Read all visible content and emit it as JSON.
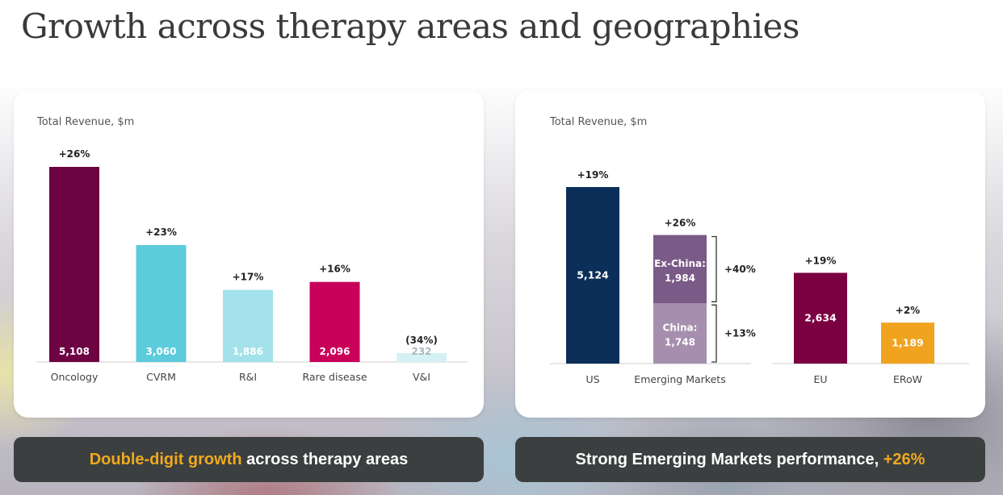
{
  "page": {
    "title": "Growth across therapy areas and geographies"
  },
  "colors": {
    "oncology": "#6d0343",
    "cvrm": "#5ccbdb",
    "ri": "#a3e2ea",
    "rare": "#c8005a",
    "vi": "#d6f1f5",
    "us": "#0b2f58",
    "china": "#a68fae",
    "exchina": "#7a5a86",
    "eu": "#7b0041",
    "erow": "#f0a31e",
    "highlight": "#f0a91e"
  },
  "banners": {
    "left": {
      "highlight": "Double-digit growth",
      "rest": " across therapy areas"
    },
    "right": {
      "text": "Strong Emerging Markets performance, ",
      "highlight": "+26%"
    }
  },
  "chart_data": [
    {
      "type": "bar",
      "title": "Total Revenue, $m",
      "categories": [
        "Oncology",
        "CVRM",
        "R&I",
        "Rare disease",
        "V&I"
      ],
      "values": [
        5108,
        3060,
        1886,
        2096,
        232
      ],
      "value_labels": [
        "5,108",
        "3,060",
        "1,886",
        "2,096",
        "232"
      ],
      "growth_labels": [
        "+26%",
        "+23%",
        "+17%",
        "+16%",
        "(34%)"
      ],
      "colors": [
        "#6d0343",
        "#5ccbdb",
        "#a3e2ea",
        "#c8005a",
        "#d6f1f5"
      ],
      "label_colors": [
        "#ffffff",
        "#ffffff",
        "#ffffff",
        "#ffffff",
        "#a9b8bb"
      ],
      "ylim": [
        0,
        5108
      ],
      "grid": false,
      "legend": "none"
    },
    {
      "type": "bar",
      "title": "Total Revenue, $m",
      "categories": [
        "US",
        "Emerging Markets",
        "EU",
        "ERoW"
      ],
      "values": [
        5124,
        3732,
        2634,
        1189
      ],
      "value_labels": [
        "5,124",
        "",
        "2,634",
        "1,189"
      ],
      "growth_labels": [
        "+19%",
        "+26%",
        "+19%",
        "+2%"
      ],
      "colors": [
        "#0b2f58",
        "",
        "#7b0041",
        "#f0a31e"
      ],
      "stack": {
        "category": "Emerging Markets",
        "segments": [
          {
            "name": "China",
            "value": 1748,
            "label": "China:",
            "value_label": "1,748",
            "growth": "+13%",
            "color": "#a68fae"
          },
          {
            "name": "Ex-China",
            "value": 1984,
            "label": "Ex-China:",
            "value_label": "1,984",
            "growth": "+40%",
            "color": "#7a5a86"
          }
        ]
      },
      "ylim": [
        0,
        5124
      ],
      "grid": false,
      "legend": "none"
    }
  ]
}
